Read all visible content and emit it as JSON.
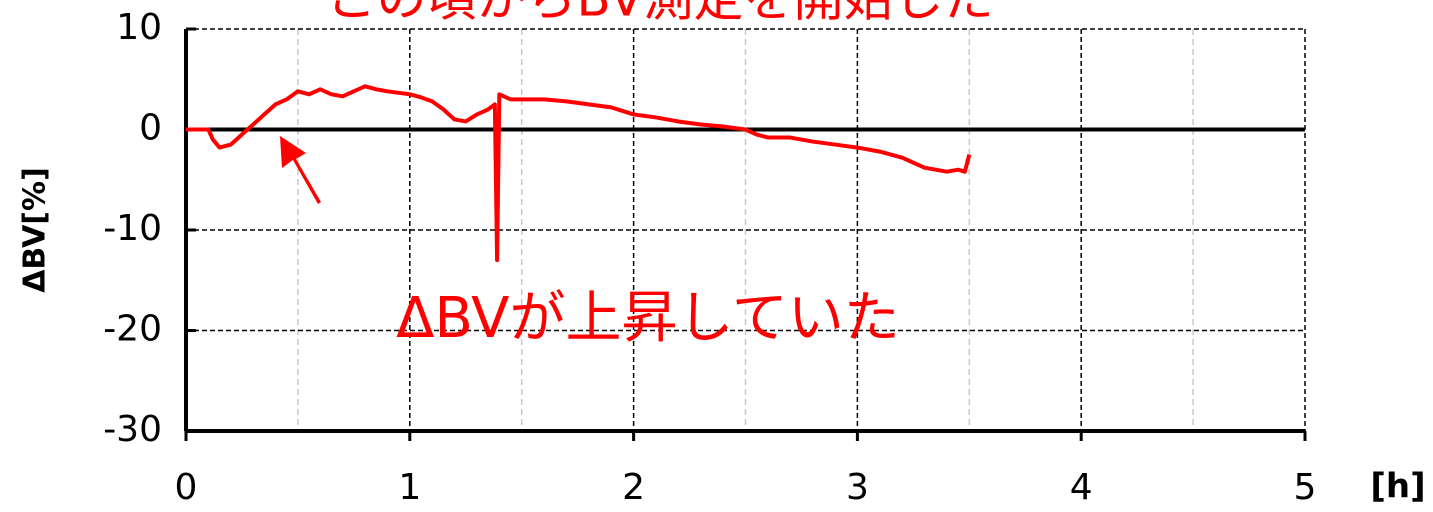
{
  "chart_data": {
    "type": "line",
    "annotations": [
      "この頃からBV測定を開始した",
      "ΔBVが上昇していた"
    ],
    "y_label": "ΔBV[%]",
    "x_label": "[h]",
    "xlim": [
      0,
      5
    ],
    "xticks": [
      0,
      1,
      2,
      3,
      4,
      5
    ],
    "xminorticks": [
      0.5,
      1.5,
      2.5,
      3.5,
      4.5
    ],
    "ylim": [
      -30,
      10
    ],
    "yticks": [
      -30,
      -20,
      -10,
      0,
      10
    ],
    "grid": true,
    "series": [
      {
        "color": "#ff0000",
        "x": [
          0,
          0.1,
          0.12,
          0.15,
          0.2,
          0.25,
          0.3,
          0.35,
          0.4,
          0.45,
          0.5,
          0.55,
          0.6,
          0.65,
          0.7,
          0.75,
          0.8,
          0.85,
          0.9,
          1.0,
          1.05,
          1.1,
          1.15,
          1.2,
          1.25,
          1.3,
          1.35,
          1.38,
          1.39,
          1.4,
          1.45,
          1.5,
          1.6,
          1.7,
          1.8,
          1.9,
          2.0,
          2.1,
          2.2,
          2.3,
          2.4,
          2.5,
          2.55,
          2.6,
          2.7,
          2.8,
          2.9,
          3.0,
          3.1,
          3.2,
          3.3,
          3.4,
          3.45,
          3.48,
          3.5
        ],
        "values": [
          0,
          0,
          -1,
          -1.8,
          -1.5,
          -0.5,
          0.5,
          1.5,
          2.5,
          3,
          3.8,
          3.5,
          4,
          3.5,
          3.3,
          3.8,
          4.3,
          4,
          3.8,
          3.5,
          3.2,
          2.8,
          2,
          1,
          0.8,
          1.5,
          2,
          2.5,
          -13,
          3.5,
          3,
          3,
          3,
          2.8,
          2.5,
          2.2,
          1.5,
          1.2,
          0.8,
          0.5,
          0.3,
          0,
          -0.5,
          -0.8,
          -0.8,
          -1.2,
          -1.5,
          -1.8,
          -2.2,
          -2.8,
          -3.8,
          -4.2,
          -4,
          -4.2,
          -2.5
        ]
      }
    ]
  }
}
